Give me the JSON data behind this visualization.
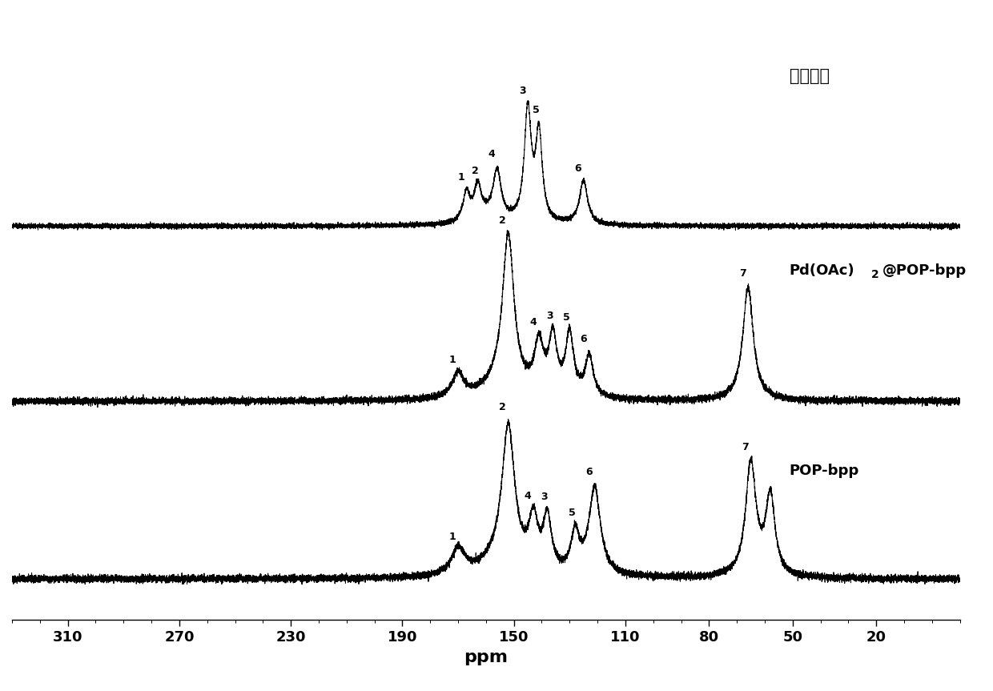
{
  "xlabel": "ppm",
  "xlabel_fontsize": 16,
  "xlabel_fontweight": "bold",
  "xmin": 330,
  "xmax": -10,
  "tick_positions": [
    310,
    270,
    230,
    190,
    150,
    110,
    80,
    50,
    20
  ],
  "background_color": "#ffffff",
  "line_color": "#000000",
  "label_model": "模型分子",
  "label_pd": "Pd(OAc)₂@POP-bpp",
  "label_pop": "POP-bpp",
  "spectrum_offsets": [
    0.63,
    0.33,
    0.03
  ],
  "spectrum_scales": [
    0.22,
    0.3,
    0.28
  ]
}
